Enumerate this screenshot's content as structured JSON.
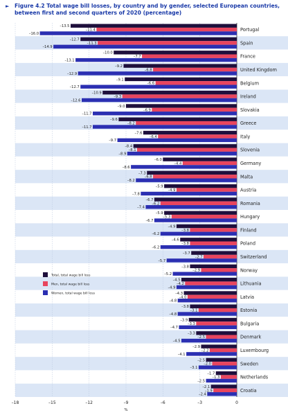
{
  "figure": {
    "title": "Figure 4.2  Total wage bill losses, by country and by gender, selected European countries, between first and second quarters of 2020 (percentage)",
    "arrow_glyph": "►"
  },
  "chart_data": {
    "type": "bar",
    "orientation": "horizontal",
    "categories": [
      "Portugal",
      "Spain",
      "France",
      "United Kingdom",
      "Belgium",
      "Ireland",
      "Slovakia",
      "Greece",
      "Italy",
      "Slovenia",
      "Germany",
      "Malta",
      "Austria",
      "Romania",
      "Hungary",
      "Finland",
      "Poland",
      "Switzerland",
      "Norway",
      "Lithuania",
      "Latvia",
      "Estonia",
      "Bulgaria",
      "Denmark",
      "Luxembourg",
      "Sweden",
      "Netherlands",
      "Croatia"
    ],
    "series": [
      {
        "name": "Total, total wage bill loss",
        "color": "#1e0f3c",
        "values": [
          -13.5,
          -12.7,
          -10.0,
          -9.2,
          -9.1,
          -10.9,
          -9.0,
          -9.6,
          -7.6,
          -8.4,
          -6.0,
          -7.3,
          -5.9,
          -6.7,
          -5.9,
          -4.9,
          -4.6,
          -3.7,
          -3.8,
          -4.5,
          -4.3,
          -3.8,
          -3.9,
          -3.3,
          -2.9,
          -2.5,
          -1.7,
          -2.1
        ]
      },
      {
        "name": "Men, total wage bill loss",
        "color": "#e8455e",
        "values": [
          -11.4,
          -11.3,
          -7.7,
          -6.8,
          -6.6,
          -9.3,
          -6.9,
          -8.2,
          -6.4,
          -8.1,
          -4.4,
          -6.8,
          -4.9,
          -6.2,
          -5.3,
          -3.8,
          -3.8,
          -2.7,
          -2.9,
          -4.2,
          -4.0,
          -3.1,
          -3.3,
          -2.5,
          -2.2,
          -2.0,
          -1.3,
          -1.9
        ]
      },
      {
        "name": "Women, total wage bill loss",
        "color": "#2b2fb2",
        "values": [
          -16.0,
          -14.9,
          -13.1,
          -12.9,
          -12.7,
          -12.6,
          -11.7,
          -11.7,
          -9.7,
          -8.9,
          -8.6,
          -8.2,
          -7.8,
          -7.4,
          -6.7,
          -6.2,
          -6.2,
          -5.7,
          -5.2,
          -4.9,
          -4.8,
          -4.8,
          -4.7,
          -4.5,
          -4.1,
          -3.1,
          -2.5,
          -2.4
        ]
      }
    ],
    "xlim": [
      -18,
      0
    ],
    "xticks": [
      -18,
      -15,
      -12,
      -9,
      -6,
      -3,
      0
    ],
    "xlabel": "%",
    "grid": "vertical",
    "legend_position": "left-middle",
    "band_colors": [
      "#ffffff",
      "#dbe6f6"
    ]
  }
}
